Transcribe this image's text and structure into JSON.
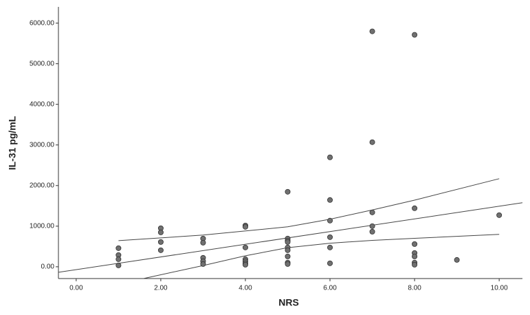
{
  "chart_data": {
    "type": "scatter",
    "x_label": "NRS",
    "y_label": "IL-31 pg/mL",
    "xlim": [
      -0.42,
      10.55
    ],
    "ylim": [
      -290,
      6400
    ],
    "xticks": [
      {
        "value": 0,
        "label": "0.00"
      },
      {
        "value": 2,
        "label": "2.00"
      },
      {
        "value": 4,
        "label": "4.00"
      },
      {
        "value": 6,
        "label": "6.00"
      },
      {
        "value": 8,
        "label": "8.00"
      },
      {
        "value": 10,
        "label": "10.00"
      }
    ],
    "yticks": [
      {
        "value": 0,
        "label": "0.00"
      },
      {
        "value": 1000,
        "label": "1000.00"
      },
      {
        "value": 2000,
        "label": "2000.00"
      },
      {
        "value": 3000,
        "label": "3000.00"
      },
      {
        "value": 4000,
        "label": "4000.00"
      },
      {
        "value": 5000,
        "label": "5000.00"
      },
      {
        "value": 6000,
        "label": "6000.00"
      }
    ],
    "series": [
      {
        "color": "#707070",
        "x": [
          1,
          1,
          1,
          1,
          2,
          2,
          2,
          2,
          3,
          3,
          3,
          3,
          3,
          4,
          4,
          4,
          4,
          4,
          4,
          4,
          5,
          5,
          5,
          5,
          5,
          5,
          5,
          5,
          5,
          6,
          6,
          6,
          6,
          6,
          6,
          7,
          7,
          7,
          7,
          7,
          8,
          8,
          8,
          8,
          8,
          8,
          8,
          9,
          10
        ],
        "values": [
          458,
          288,
          186,
          34,
          949,
          847,
          610,
          407,
          695,
          593,
          220,
          136,
          68,
          1017,
          983,
          475,
          186,
          136,
          85,
          51,
          1847,
          695,
          644,
          610,
          475,
          407,
          254,
          102,
          68,
          2695,
          1644,
          1136,
          729,
          475,
          85,
          5797,
          3068,
          1339,
          1000,
          864,
          5712,
          1441,
          559,
          339,
          254,
          102,
          51,
          169,
          1271
        ]
      }
    ],
    "lines": [
      {
        "color": "#444444",
        "x": [
          -0.42,
          10.55
        ],
        "values": [
          -136,
          1576
        ]
      },
      {
        "color": "#444444",
        "x": [
          1,
          3,
          5,
          6,
          7,
          8,
          10
        ],
        "values": [
          644,
          780,
          983,
          1170,
          1400,
          1640,
          2169
        ]
      },
      {
        "color": "#444444",
        "x": [
          1.6,
          3,
          4,
          5,
          6,
          7,
          8,
          10
        ],
        "values": [
          -288,
          30,
          270,
          470,
          580,
          650,
          700,
          797
        ]
      }
    ]
  }
}
